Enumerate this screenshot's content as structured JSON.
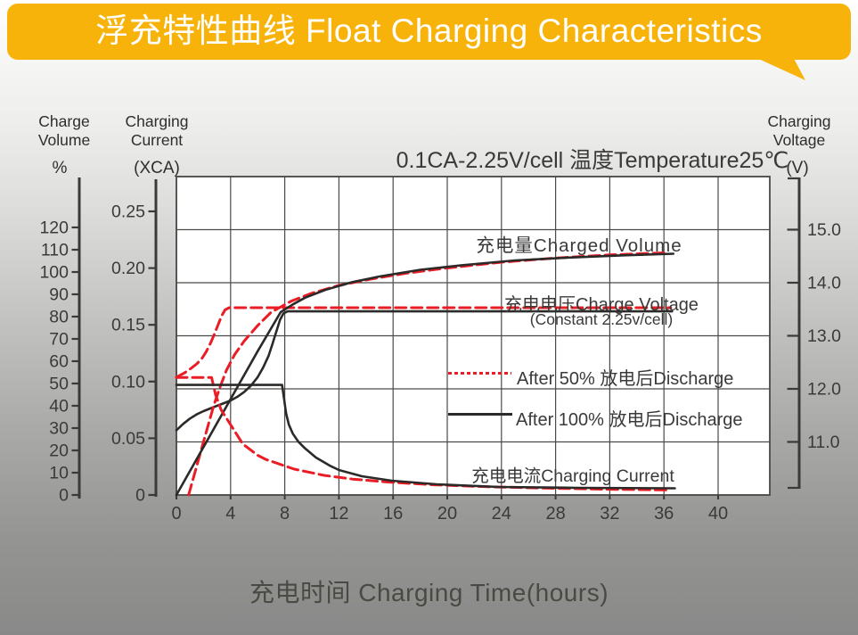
{
  "title": {
    "text": "浮充特性曲线 Float Charging Characteristics",
    "bg_color": "#f8b30b",
    "text_color": "#ffffff"
  },
  "condition": "0.1CA-2.25V/cell  温度Temperature25℃",
  "xlabel": "充电时间 Charging Time(hours)",
  "axis_headers": {
    "volume": {
      "title": "Charge\nVolume",
      "unit": "%"
    },
    "current": {
      "title": "Charging\nCurrent",
      "unit": "(XCA)"
    },
    "voltage": {
      "title": "Charging\nVoltage",
      "unit": "(V)"
    }
  },
  "annotations": {
    "charged_volume": "充电量Charged Volume",
    "charge_voltage_line1": "充电电压Charge Voltage",
    "charge_voltage_line2": "(Constant 2.25v/cell)",
    "charging_current": "充电电流Charging Current"
  },
  "legend": {
    "after50": "After 50% 放电后Discharge",
    "after100": "After 100% 放电后Discharge"
  },
  "chart_data": {
    "type": "line",
    "title": "浮充特性曲线 Float Charging Characteristics",
    "condition": "0.1CA-2.25V/cell 温度Temperature25℃",
    "grid": true,
    "colors": {
      "red": "#ea1c25",
      "black": "#2b2a28",
      "grid": "#4c4a48",
      "axis": "#3b3a39",
      "text": "#3b3a39"
    },
    "x": {
      "label": "充电时间 Charging Time(hours)",
      "unit": "hours",
      "ticks": [
        0,
        4,
        8,
        12,
        16,
        20,
        24,
        28,
        32,
        36,
        40
      ],
      "range": [
        0,
        43.8
      ]
    },
    "y_axes": {
      "volume": {
        "label": "Charge Volume",
        "unit": "%",
        "tick_labels": [
          "0",
          "10",
          "20",
          "30",
          "40",
          "50",
          "60",
          "70",
          "80",
          "90",
          "100",
          "110",
          "120"
        ],
        "range": [
          0,
          142.8
        ]
      },
      "current": {
        "label": "Charging Current",
        "unit": "XCA",
        "tick_labels": [
          "0",
          "0.05",
          "0.10",
          "0.15",
          "0.20",
          "0.25"
        ],
        "range": [
          0,
          0.281
        ]
      },
      "voltage": {
        "label": "Charging Voltage",
        "unit": "V",
        "tick_labels": [
          "11.0",
          "12.0",
          "13.0",
          "14.0",
          "15.0"
        ],
        "range": [
          10,
          16
        ]
      }
    },
    "series": [
      {
        "id": "voltage-after-50-discharge",
        "axis": "voltage",
        "color": "red",
        "dashed": true,
        "points": [
          [
            0,
            12.22
          ],
          [
            0.6,
            12.3
          ],
          [
            1.1,
            12.39
          ],
          [
            1.5,
            12.47
          ],
          [
            1.9,
            12.58
          ],
          [
            2.2,
            12.7
          ],
          [
            2.5,
            12.85
          ],
          [
            2.8,
            13.03
          ],
          [
            3.1,
            13.22
          ],
          [
            3.35,
            13.38
          ],
          [
            3.6,
            13.49
          ],
          [
            3.9,
            13.53
          ],
          [
            36.5,
            13.53
          ]
        ]
      },
      {
        "id": "voltage-after-100-discharge",
        "axis": "voltage",
        "color": "black",
        "dashed": false,
        "points": [
          [
            0,
            11.22
          ],
          [
            0.5,
            11.34
          ],
          [
            1,
            11.44
          ],
          [
            1.5,
            11.52
          ],
          [
            2,
            11.58
          ],
          [
            2.5,
            11.63
          ],
          [
            3,
            11.68
          ],
          [
            3.5,
            11.73
          ],
          [
            4,
            11.78
          ],
          [
            4.5,
            11.85
          ],
          [
            5,
            11.94
          ],
          [
            5.5,
            12.06
          ],
          [
            6,
            12.22
          ],
          [
            6.4,
            12.4
          ],
          [
            6.8,
            12.62
          ],
          [
            7.1,
            12.85
          ],
          [
            7.4,
            13.1
          ],
          [
            7.65,
            13.3
          ],
          [
            7.9,
            13.42
          ],
          [
            8.2,
            13.46
          ],
          [
            36.6,
            13.46
          ]
        ]
      },
      {
        "id": "volume-after-50-discharge",
        "axis": "volume",
        "color": "red",
        "dashed": true,
        "points": [
          [
            0.9,
            0
          ],
          [
            1.5,
            13
          ],
          [
            2.1,
            26
          ],
          [
            2.75,
            40
          ],
          [
            3.2,
            48
          ],
          [
            3.7,
            56
          ],
          [
            4.3,
            63
          ],
          [
            5,
            69
          ],
          [
            6,
            76
          ],
          [
            7,
            82
          ],
          [
            8.5,
            87
          ],
          [
            10,
            90.5
          ],
          [
            12,
            94
          ],
          [
            14.5,
            97
          ],
          [
            17,
            99.5
          ],
          [
            20,
            101.8
          ],
          [
            24,
            104.4
          ],
          [
            28,
            106.3
          ],
          [
            32,
            107.7
          ],
          [
            36.3,
            108.7
          ]
        ]
      },
      {
        "id": "volume-after-100-discharge",
        "axis": "volume",
        "color": "black",
        "dashed": false,
        "points": [
          [
            0,
            0
          ],
          [
            2,
            21.5
          ],
          [
            4,
            43
          ],
          [
            6,
            64.5
          ],
          [
            7.7,
            82
          ],
          [
            8.6,
            85.5
          ],
          [
            9.5,
            88.5
          ],
          [
            11,
            92
          ],
          [
            13,
            95.5
          ],
          [
            15,
            98
          ],
          [
            18,
            101
          ],
          [
            21,
            103
          ],
          [
            25,
            105.2
          ],
          [
            29,
            106.5
          ],
          [
            33,
            107.5
          ],
          [
            36.7,
            108.2
          ]
        ]
      },
      {
        "id": "current-after-50-discharge",
        "axis": "current",
        "color": "red",
        "dashed": true,
        "points": [
          [
            0,
            0.1035
          ],
          [
            2.6,
            0.1035
          ],
          [
            2.9,
            0.088
          ],
          [
            3.3,
            0.075
          ],
          [
            3.95,
            0.063
          ],
          [
            4.9,
            0.045
          ],
          [
            6,
            0.035
          ],
          [
            6.6,
            0.0314
          ],
          [
            8.7,
            0.0228
          ],
          [
            10.9,
            0.0173
          ],
          [
            13,
            0.014
          ],
          [
            15.5,
            0.0115
          ],
          [
            19,
            0.009
          ],
          [
            23,
            0.0072
          ],
          [
            27.5,
            0.006
          ],
          [
            32,
            0.005
          ],
          [
            36.5,
            0.0044
          ]
        ]
      },
      {
        "id": "current-after-100-discharge",
        "axis": "current",
        "color": "black",
        "dashed": false,
        "points": [
          [
            0,
            0.097
          ],
          [
            7.8,
            0.097
          ],
          [
            7.95,
            0.085
          ],
          [
            8.1,
            0.072
          ],
          [
            8.3,
            0.062
          ],
          [
            8.6,
            0.054
          ],
          [
            9,
            0.047
          ],
          [
            9.5,
            0.041
          ],
          [
            10.3,
            0.033
          ],
          [
            11.3,
            0.026
          ],
          [
            12,
            0.022
          ],
          [
            13.7,
            0.0165
          ],
          [
            15.9,
            0.0126
          ],
          [
            19.2,
            0.0094
          ],
          [
            23.8,
            0.0071
          ],
          [
            29.7,
            0.0063
          ],
          [
            36.8,
            0.0059
          ]
        ]
      }
    ],
    "legend_entries": [
      {
        "label": "After 50% 放电后Discharge",
        "style": "red-dashed"
      },
      {
        "label": "After 100% 放电后Discharge",
        "style": "black-solid"
      }
    ],
    "annotations": [
      "充电量Charged Volume",
      "充电电压Charge Voltage",
      "(Constant 2.25v/cell)",
      "充电电流Charging Current"
    ]
  }
}
